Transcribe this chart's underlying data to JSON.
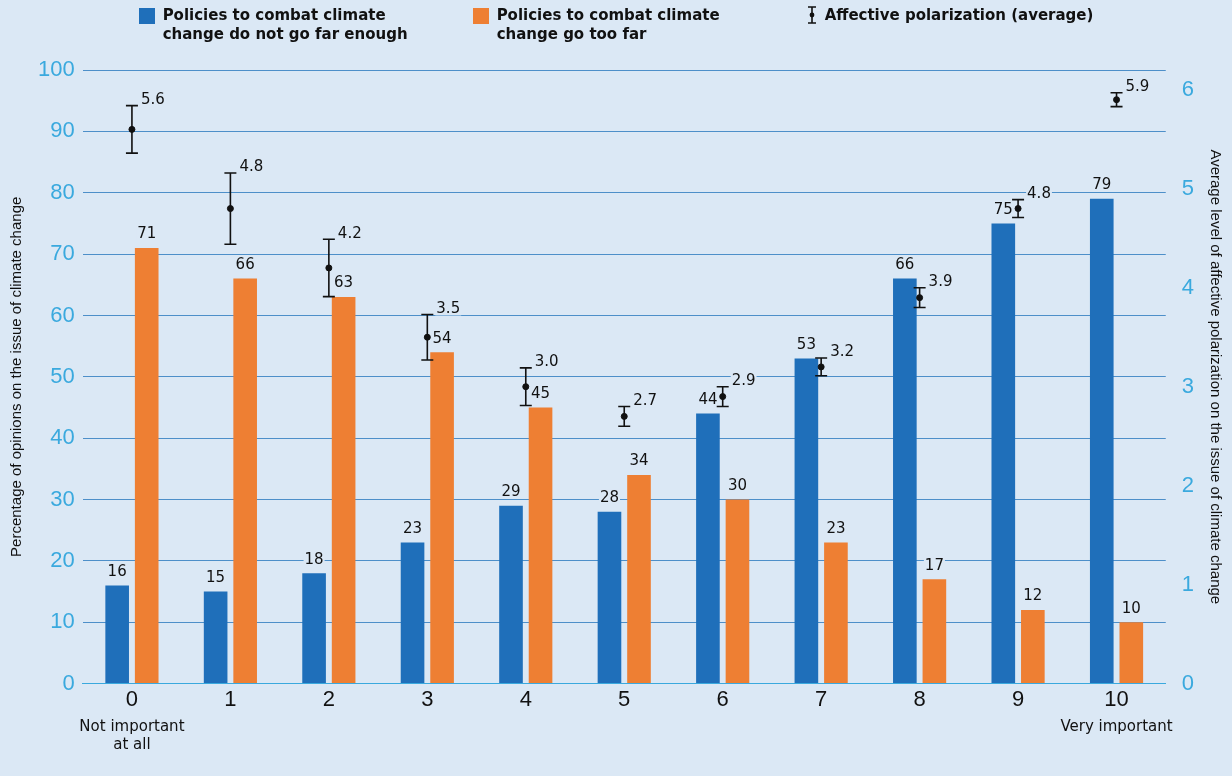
{
  "chart_data": {
    "type": "bar",
    "categories": [
      "0",
      "1",
      "2",
      "3",
      "4",
      "5",
      "6",
      "7",
      "8",
      "9",
      "10"
    ],
    "ylabel": "Percentage of opinions on the issue of climate change",
    "y2label": "Average level of affective polarization on the issue of climate change",
    "ylim": [
      0,
      100
    ],
    "yticks": [
      0,
      10,
      20,
      30,
      40,
      50,
      60,
      70,
      80,
      90,
      100
    ],
    "y2lim": [
      0,
      6.2
    ],
    "y2ticks": [
      0,
      1,
      2,
      3,
      4,
      5,
      6
    ],
    "series": [
      {
        "name": "Policies to combat climate change do not go far enough",
        "color": "#1f6fba",
        "values": [
          16,
          15,
          18,
          23,
          29,
          28,
          44,
          53,
          66,
          75,
          79
        ]
      },
      {
        "name": "Policies to combat climate change go too far",
        "color": "#ee7f33",
        "values": [
          71,
          66,
          63,
          54,
          45,
          34,
          30,
          23,
          17,
          12,
          10
        ]
      },
      {
        "name": "Affective polarization (average)",
        "type": "scatter",
        "axis": "y2",
        "color": "#111111",
        "values": [
          5.6,
          4.8,
          4.2,
          3.5,
          3.0,
          2.7,
          2.9,
          3.2,
          3.9,
          4.8,
          5.9
        ],
        "errors": [
          0.24,
          0.36,
          0.29,
          0.23,
          0.19,
          0.1,
          0.1,
          0.09,
          0.1,
          0.09,
          0.07
        ],
        "value_labels": [
          "5.6",
          "4.8",
          "4.2",
          "3.5",
          "3.0",
          "2.7",
          "2.9",
          "3.2",
          "3.9",
          "4.8",
          "5.9"
        ]
      }
    ],
    "data_labels": true,
    "grid": "y",
    "legend": "top",
    "marker": "circle",
    "annotations": [
      "Not important at all",
      "Very important"
    ]
  }
}
